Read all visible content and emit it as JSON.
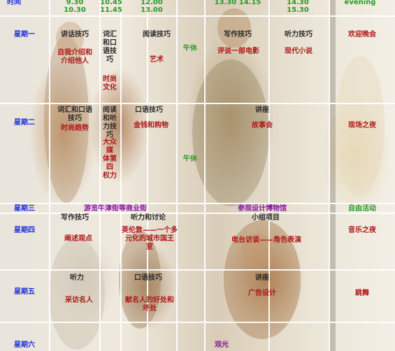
{
  "header": {
    "time": "时间",
    "slots": [
      "9.30\n10.30",
      "10.45\n11.45",
      "12.00\n13.00",
      "13.30  14.15",
      "14.30\n15.30",
      "evening"
    ]
  },
  "days": [
    "星期一",
    "星期二",
    "星期三",
    "星期四",
    "星期五",
    "星期六"
  ],
  "mon": {
    "a_title": "讲话技巧",
    "a_sub": "自我介绍和\n介绍他人",
    "b_title": "词汇\n和口\n语技\n巧",
    "b_sub": "时尚\n文化",
    "c_title": "阅读技巧",
    "c_sub": "艺术",
    "lunch": "午休",
    "d_title": "写作技巧",
    "d_sub": "评说一部电影",
    "e_title": "听力技巧",
    "e_sub": "现代小说",
    "evening": "欢迎晚会"
  },
  "tue": {
    "a_title": "词汇和口语\n技巧",
    "a_sub": "时尚趋势",
    "b_title": "阅读\n和听\n力技\n巧",
    "b_sub": "大众\n媒\n体第四\n权力",
    "c_title": "口语技巧",
    "c_sub": "金钱和购物",
    "lunch": "午休",
    "d_title": "讲座",
    "d_sub": "故事会",
    "evening": "现场之夜"
  },
  "wed": {
    "trip": "游览牛津街等商业街",
    "design": "参观设计博物馆",
    "evening": "自由活动"
  },
  "thu": {
    "a_title": "写作技巧",
    "a_sub": "阐述观点",
    "b_title": "听力和讨论",
    "b_sub": "英伦敦——一个多\n元化的城市国王\n室",
    "d_title": "小组项目",
    "d_sub": "电台访谈——角色表演",
    "evening": "音乐之夜"
  },
  "fri": {
    "a_title": "听力",
    "a_sub": "采访名人",
    "b_title": "口语技巧",
    "b_sub": "献名人的好处和\n坏处",
    "d_title": "讲座",
    "d_sub": "广告设计",
    "evening": "跳舞"
  },
  "sat": {
    "activity": "观光"
  }
}
